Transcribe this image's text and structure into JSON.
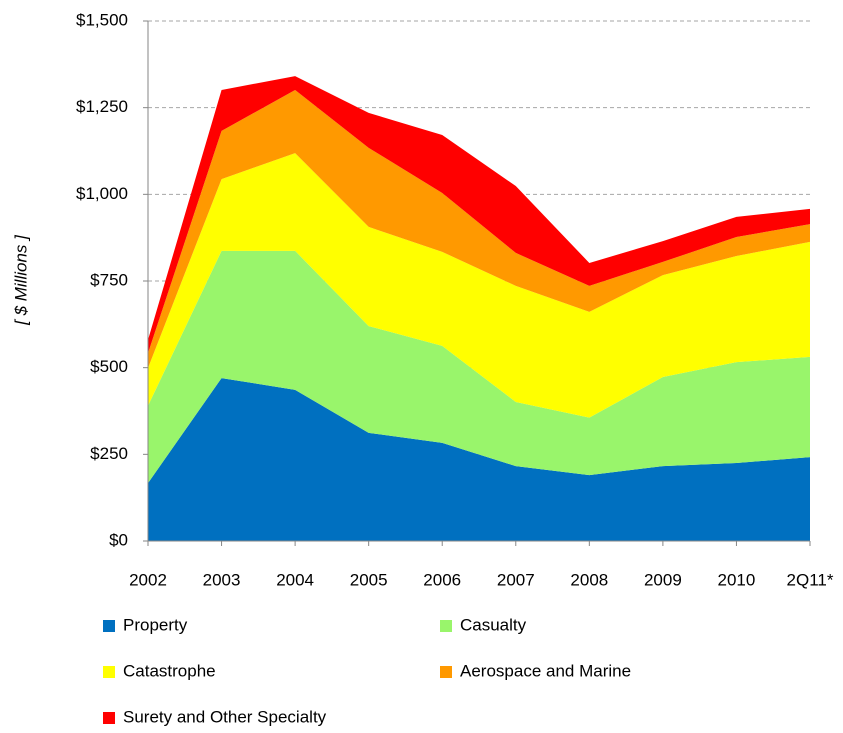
{
  "chart_data": {
    "type": "stacked-area",
    "y_label": "[ $ Millions ]",
    "categories": [
      "2002",
      "2003",
      "2004",
      "2005",
      "2006",
      "2007",
      "2008",
      "2009",
      "2010",
      "2Q11*"
    ],
    "series": [
      {
        "name": "Property",
        "color": "#0070c0",
        "values": [
          167,
          470,
          436,
          312,
          283,
          216,
          190,
          216,
          225,
          242
        ]
      },
      {
        "name": "Casualty",
        "color": "#99f56b",
        "values": [
          223,
          367,
          401,
          308,
          280,
          185,
          166,
          257,
          291,
          289
        ]
      },
      {
        "name": "Catastrophe",
        "color": "#ffff00",
        "values": [
          109,
          207,
          282,
          286,
          271,
          335,
          305,
          294,
          306,
          332
        ]
      },
      {
        "name": "Aerospace and Marine",
        "color": "#ff9900",
        "values": [
          43,
          139,
          182,
          228,
          170,
          95,
          75,
          38,
          55,
          51
        ]
      },
      {
        "name": "Surety and Other Specialty",
        "color": "#ff0000",
        "values": [
          38,
          118,
          40,
          101,
          167,
          193,
          66,
          60,
          58,
          44
        ]
      }
    ],
    "ylim": [
      0,
      1500
    ],
    "yticks": [
      {
        "value": 0,
        "label": "$0"
      },
      {
        "value": 250,
        "label": "$250"
      },
      {
        "value": 500,
        "label": "$500"
      },
      {
        "value": 750,
        "label": "$750"
      },
      {
        "value": 1000,
        "label": "$1,000"
      },
      {
        "value": 1250,
        "label": "$1,250"
      },
      {
        "value": 1500,
        "label": "$1,500"
      }
    ],
    "grid": true
  }
}
